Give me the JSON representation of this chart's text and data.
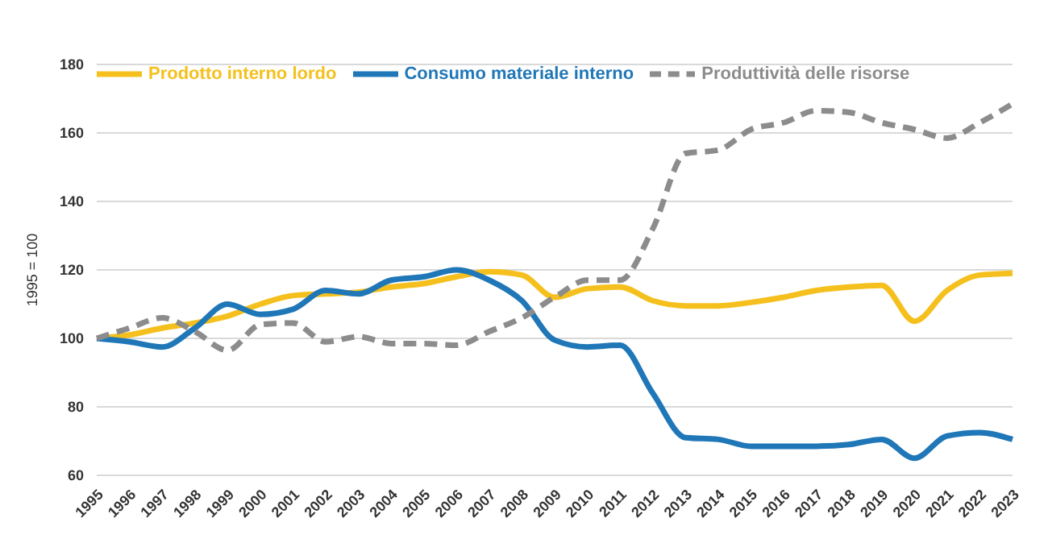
{
  "chart_data": {
    "type": "line",
    "ylabel": "1995 = 100",
    "categories": [
      "1995",
      "1996",
      "1997",
      "1998",
      "1999",
      "2000",
      "2001",
      "2002",
      "2003",
      "2004",
      "2005",
      "2006",
      "2007",
      "2008",
      "2009",
      "2010",
      "2011",
      "2012",
      "2013",
      "2014",
      "2015",
      "2016",
      "2017",
      "2018",
      "2019",
      "2020",
      "2021",
      "2022",
      "2023"
    ],
    "series": [
      {
        "name": "Prodotto interno lordo",
        "color": "#f5c01d",
        "values": [
          100,
          101,
          103,
          104.5,
          106.5,
          110,
          112.5,
          113,
          113.5,
          115,
          116,
          118,
          119.5,
          118.5,
          112,
          114.5,
          115,
          111,
          109.5,
          109.5,
          110.5,
          112,
          114,
          115,
          115.5,
          105,
          114,
          118.5,
          119
        ]
      },
      {
        "name": "Consumo materiale interno",
        "color": "#1f77b8",
        "values": [
          100,
          99,
          97.5,
          103,
          110,
          107,
          108.5,
          114,
          113,
          117,
          118,
          120,
          117,
          111,
          99.5,
          97.5,
          98,
          84,
          71,
          70.5,
          68.5,
          68.5,
          68.5,
          69,
          70.5,
          65,
          71.5,
          72.5,
          70.5
        ]
      },
      {
        "name": "Produttività delle risorse",
        "color": "#8c8c8c",
        "line_style": "dashed",
        "values": [
          100,
          103,
          106,
          102,
          96.5,
          104,
          104.5,
          99,
          100.5,
          98.5,
          98.5,
          98,
          102,
          106,
          112,
          117,
          117,
          132,
          154,
          155,
          161,
          163,
          166.5,
          166,
          163,
          161,
          158.5,
          163,
          168.5
        ]
      }
    ],
    "ylim": [
      60,
      180
    ],
    "yticks": [
      60,
      80,
      100,
      120,
      140,
      160,
      180
    ],
    "grid": "y",
    "legend": "top left",
    "marker": "none"
  }
}
